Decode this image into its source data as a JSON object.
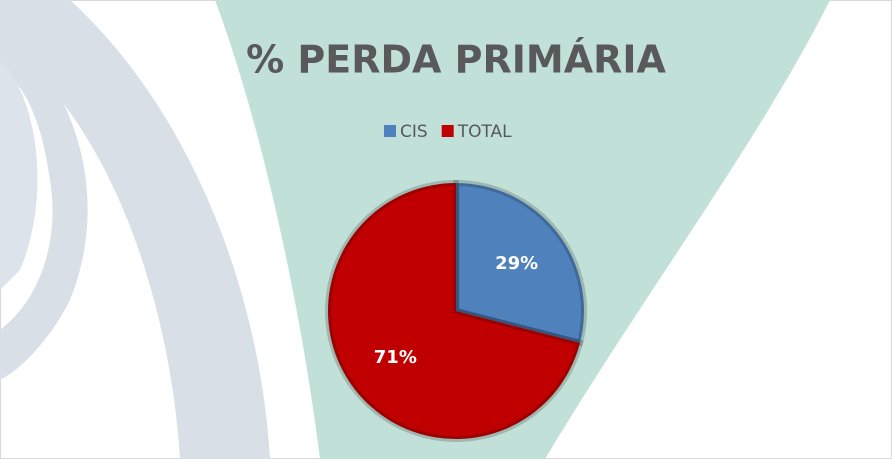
{
  "chart_data": {
    "type": "pie",
    "title": "% PERDA PRIMÁRIA",
    "categories": [
      "CIS",
      "TOTAL"
    ],
    "values": [
      29,
      71
    ],
    "value_labels": [
      "29%",
      "71%"
    ],
    "colors": [
      "#4f81bd",
      "#c00000"
    ],
    "legend": "top"
  }
}
